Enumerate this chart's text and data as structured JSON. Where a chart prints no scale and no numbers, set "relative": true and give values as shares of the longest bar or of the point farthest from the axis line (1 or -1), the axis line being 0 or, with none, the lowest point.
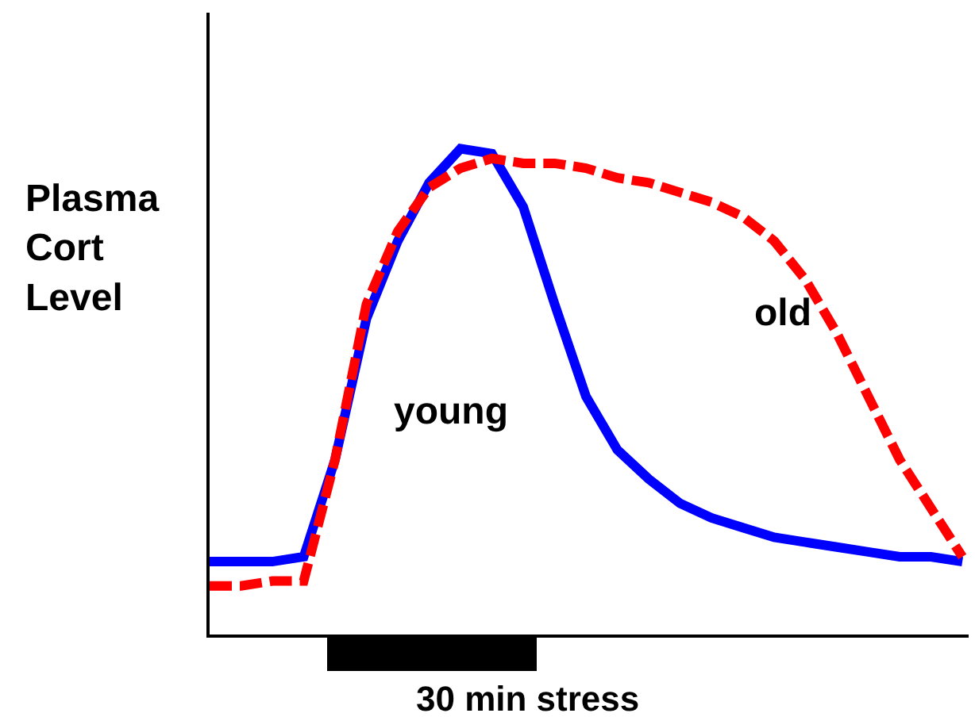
{
  "chart_data": {
    "type": "line",
    "relative": true,
    "ylabel": "Plasma Cort Level",
    "annotations": [
      "30 min stress"
    ],
    "categories": [
      null,
      null,
      null,
      null,
      null,
      null,
      null,
      null,
      null,
      null,
      null,
      null,
      null,
      null,
      null,
      null,
      null,
      null,
      null,
      null,
      null,
      null,
      null,
      null,
      null
    ],
    "series": [
      {
        "name": "young",
        "color": "#0000ff",
        "line_style": "solid",
        "values": [
          0.15,
          0.15,
          0.15,
          0.16,
          0.36,
          0.65,
          0.81,
          0.93,
          1.0,
          0.99,
          0.88,
          0.68,
          0.49,
          0.38,
          0.32,
          0.27,
          0.24,
          0.22,
          0.2,
          0.19,
          0.18,
          0.17,
          0.16,
          0.16,
          0.15
        ]
      },
      {
        "name": "old",
        "color": "#ff0000",
        "line_style": "dashed",
        "values": [
          0.1,
          0.1,
          0.11,
          0.11,
          0.36,
          0.68,
          0.83,
          0.92,
          0.96,
          0.98,
          0.97,
          0.97,
          0.96,
          0.94,
          0.93,
          0.91,
          0.89,
          0.86,
          0.81,
          0.73,
          0.62,
          0.49,
          0.36,
          0.26,
          0.16
        ]
      }
    ],
    "grid": false,
    "legend": false,
    "marker": "none"
  }
}
